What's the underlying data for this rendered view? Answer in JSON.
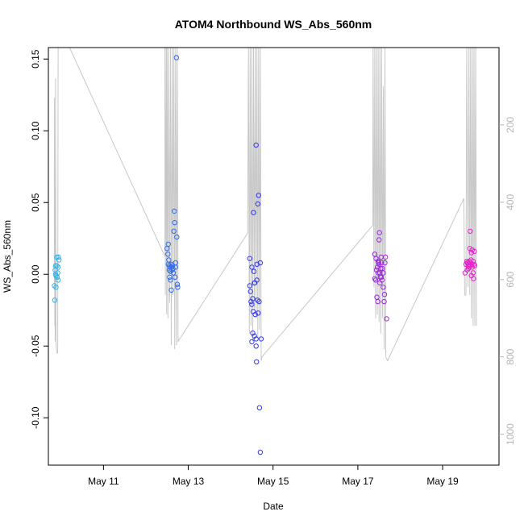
{
  "chart_data": {
    "type": "scatter",
    "title": "ATOM4 Northbound WS_Abs_560nm",
    "xlabel": "Date",
    "ylabel": "WS_Abs_560nm",
    "xlim": [
      9.7,
      20.33
    ],
    "ylim": [
      -0.133,
      0.158
    ],
    "y_ticks": [
      -0.1,
      -0.05,
      0.0,
      0.05,
      0.1,
      0.15
    ],
    "y_tick_labels": [
      "-0.10",
      "-0.05",
      "0.00",
      "0.05",
      "0.10",
      "0.15"
    ],
    "x_ticks": [
      11,
      13,
      15,
      17,
      19
    ],
    "x_tick_labels": [
      "May 11",
      "May 13",
      "May 15",
      "May 17",
      "May 19"
    ],
    "y2_range_top": 0,
    "y2_range_bottom": 1080,
    "y2_ticks": [
      200,
      400,
      600,
      800,
      1000
    ],
    "y2_tick_labels": [
      "200",
      "400",
      "600",
      "800",
      "1000"
    ],
    "colors": {
      "point_start": "#33b5e5",
      "point_mid": "#3333ee",
      "point_end": "#ee22cc",
      "altitude_line": "#c8c8c8",
      "right_axis": "#b4b4b4"
    },
    "points": [
      [
        9.85,
        -0.018
      ],
      [
        9.84,
        -0.008
      ],
      [
        9.86,
        0.003
      ],
      [
        9.87,
        0.006
      ],
      [
        9.88,
        -0.001
      ],
      [
        9.88,
        -0.009
      ],
      [
        9.9,
        0.012
      ],
      [
        9.9,
        0.006
      ],
      [
        9.91,
        -0.002
      ],
      [
        9.92,
        0.001
      ],
      [
        9.93,
        -0.004
      ],
      [
        9.94,
        0.012
      ],
      [
        9.95,
        0.01
      ],
      [
        9.93,
        0.005
      ],
      [
        9.87,
        0.0
      ],
      [
        12.5,
        0.018
      ],
      [
        12.52,
        0.014
      ],
      [
        12.53,
        0.021
      ],
      [
        12.53,
        0.007
      ],
      [
        12.55,
        0.003
      ],
      [
        12.55,
        0.006
      ],
      [
        12.56,
        -0.002
      ],
      [
        12.57,
        0.005
      ],
      [
        12.58,
        -0.004
      ],
      [
        12.58,
        0.002
      ],
      [
        12.6,
        0.007
      ],
      [
        12.6,
        -0.011
      ],
      [
        12.62,
        0.003
      ],
      [
        12.63,
        0.006
      ],
      [
        12.64,
        0.004
      ],
      [
        12.65,
        0.001
      ],
      [
        12.66,
        0.03
      ],
      [
        12.67,
        0.044
      ],
      [
        12.68,
        0.036
      ],
      [
        12.69,
        -0.002
      ],
      [
        12.7,
        0.005
      ],
      [
        12.7,
        0.008
      ],
      [
        12.72,
        0.151
      ],
      [
        12.73,
        0.026
      ],
      [
        12.74,
        -0.007
      ],
      [
        12.75,
        -0.009
      ],
      [
        12.54,
        0.01
      ],
      [
        12.61,
        0.005
      ],
      [
        14.45,
        0.011
      ],
      [
        14.45,
        -0.008
      ],
      [
        14.47,
        -0.012
      ],
      [
        14.48,
        -0.019
      ],
      [
        14.5,
        -0.021
      ],
      [
        14.5,
        0.005
      ],
      [
        14.52,
        -0.017
      ],
      [
        14.53,
        -0.026
      ],
      [
        14.54,
        0.043
      ],
      [
        14.55,
        0.002
      ],
      [
        14.56,
        -0.006
      ],
      [
        14.57,
        -0.006
      ],
      [
        14.58,
        -0.028
      ],
      [
        14.6,
        0.09
      ],
      [
        14.61,
        -0.061
      ],
      [
        14.62,
        0.007
      ],
      [
        14.63,
        -0.018
      ],
      [
        14.64,
        0.049
      ],
      [
        14.65,
        -0.027
      ],
      [
        14.66,
        0.055
      ],
      [
        14.67,
        -0.019
      ],
      [
        14.68,
        -0.093
      ],
      [
        14.7,
        -0.124
      ],
      [
        14.7,
        0.008
      ],
      [
        14.72,
        -0.045
      ],
      [
        14.52,
        -0.041
      ],
      [
        14.56,
        -0.043
      ],
      [
        14.5,
        -0.047
      ],
      [
        14.6,
        -0.045
      ],
      [
        14.6,
        -0.05
      ],
      [
        14.62,
        -0.004
      ],
      [
        17.4,
        0.014
      ],
      [
        17.4,
        -0.003
      ],
      [
        17.42,
        -0.004
      ],
      [
        17.43,
        0.011
      ],
      [
        17.44,
        0.003
      ],
      [
        17.45,
        -0.016
      ],
      [
        17.46,
        0.005
      ],
      [
        17.47,
        -0.019
      ],
      [
        17.48,
        0.001
      ],
      [
        17.49,
        0.008
      ],
      [
        17.5,
        0.024
      ],
      [
        17.51,
        0.029
      ],
      [
        17.52,
        0.001
      ],
      [
        17.53,
        -0.002
      ],
      [
        17.54,
        0.004
      ],
      [
        17.55,
        0.012
      ],
      [
        17.56,
        0.008
      ],
      [
        17.57,
        -0.004
      ],
      [
        17.58,
        0.004
      ],
      [
        17.6,
        -0.009
      ],
      [
        17.62,
        -0.019
      ],
      [
        17.63,
        -0.014
      ],
      [
        17.64,
        0.008
      ],
      [
        17.65,
        0.012
      ],
      [
        17.68,
        -0.031
      ],
      [
        17.5,
        0.007
      ],
      [
        17.52,
        -0.006
      ],
      [
        17.48,
        0.009
      ],
      [
        17.55,
        -0.002
      ],
      [
        17.6,
        0.001
      ],
      [
        19.55,
        0.007
      ],
      [
        19.57,
        0.009
      ],
      [
        19.58,
        0.008
      ],
      [
        19.6,
        0.006
      ],
      [
        19.6,
        0.008
      ],
      [
        19.61,
        0.004
      ],
      [
        19.62,
        0.005
      ],
      [
        19.63,
        0.009
      ],
      [
        19.64,
        0.018
      ],
      [
        19.65,
        0.008
      ],
      [
        19.65,
        0.03
      ],
      [
        19.66,
        0.006
      ],
      [
        19.67,
        0.01
      ],
      [
        19.68,
        -0.001
      ],
      [
        19.68,
        0.015
      ],
      [
        19.69,
        0.007
      ],
      [
        19.7,
        0.005
      ],
      [
        19.7,
        0.017
      ],
      [
        19.72,
        0.009
      ],
      [
        19.72,
        0.001
      ],
      [
        19.73,
        -0.003
      ],
      [
        19.74,
        0.007
      ],
      [
        19.75,
        0.016
      ],
      [
        19.76,
        0.006
      ],
      [
        19.53,
        0.001
      ],
      [
        19.58,
        0.003
      ],
      [
        19.62,
        0.006
      ]
    ],
    "altitude_series": [
      [
        9.84,
        610
      ],
      [
        9.84,
        130
      ],
      [
        9.85,
        720
      ],
      [
        9.86,
        420
      ],
      [
        9.86,
        760
      ],
      [
        9.87,
        80
      ],
      [
        9.88,
        770
      ],
      [
        9.9,
        790
      ],
      [
        9.92,
        790
      ],
      [
        9.93,
        0
      ],
      [
        9.94,
        0
      ],
      [
        10.2,
        0
      ],
      [
        12.45,
        540
      ],
      [
        12.45,
        0
      ],
      [
        12.46,
        640
      ],
      [
        12.48,
        0
      ],
      [
        12.49,
        690
      ],
      [
        12.5,
        0
      ],
      [
        12.52,
        700
      ],
      [
        12.54,
        0
      ],
      [
        12.56,
        660
      ],
      [
        12.58,
        0
      ],
      [
        12.6,
        770
      ],
      [
        12.62,
        0
      ],
      [
        12.64,
        640
      ],
      [
        12.66,
        0
      ],
      [
        12.68,
        780
      ],
      [
        12.7,
        0
      ],
      [
        12.72,
        770
      ],
      [
        12.74,
        0
      ],
      [
        12.76,
        760
      ],
      [
        14.4,
        480
      ],
      [
        14.42,
        0
      ],
      [
        14.44,
        740
      ],
      [
        14.46,
        0
      ],
      [
        14.48,
        720
      ],
      [
        14.5,
        0
      ],
      [
        14.52,
        760
      ],
      [
        14.54,
        0
      ],
      [
        14.56,
        680
      ],
      [
        14.58,
        0
      ],
      [
        14.6,
        700
      ],
      [
        14.62,
        0
      ],
      [
        14.64,
        750
      ],
      [
        14.66,
        0
      ],
      [
        14.68,
        730
      ],
      [
        14.7,
        0
      ],
      [
        14.72,
        810
      ],
      [
        14.74,
        800
      ],
      [
        17.35,
        460
      ],
      [
        17.36,
        0
      ],
      [
        17.38,
        620
      ],
      [
        17.4,
        0
      ],
      [
        17.42,
        700
      ],
      [
        17.44,
        0
      ],
      [
        17.46,
        690
      ],
      [
        17.48,
        0
      ],
      [
        17.5,
        710
      ],
      [
        17.52,
        0
      ],
      [
        17.54,
        740
      ],
      [
        17.56,
        0
      ],
      [
        17.58,
        700
      ],
      [
        17.6,
        100
      ],
      [
        17.62,
        780
      ],
      [
        17.64,
        0
      ],
      [
        17.66,
        800
      ],
      [
        17.7,
        810
      ],
      [
        19.5,
        390
      ],
      [
        19.52,
        640
      ],
      [
        19.55,
        640
      ],
      [
        19.57,
        0
      ],
      [
        19.6,
        620
      ],
      [
        19.62,
        0
      ],
      [
        19.64,
        640
      ],
      [
        19.66,
        0
      ],
      [
        19.68,
        700
      ],
      [
        19.7,
        0
      ],
      [
        19.72,
        720
      ],
      [
        19.74,
        0
      ],
      [
        19.76,
        720
      ],
      [
        19.78,
        0
      ],
      [
        19.8,
        720
      ]
    ]
  }
}
